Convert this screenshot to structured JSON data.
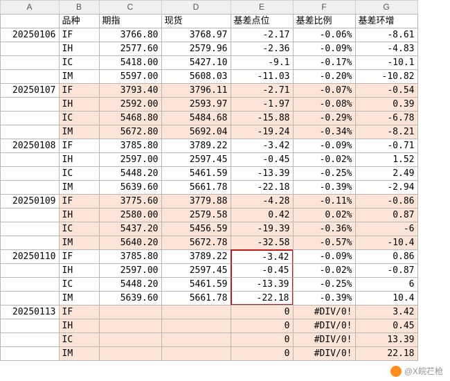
{
  "col_letters": [
    "A",
    "B",
    "C",
    "D",
    "E",
    "F",
    "G"
  ],
  "headers": {
    "B": "品种",
    "C": "期指",
    "D": "现货",
    "E": "基差点位",
    "F": "基差比例",
    "G": "基差环增"
  },
  "style": {
    "peach_color": "#fce4d6",
    "redbox_color": "#c01818",
    "border_color": "#b7b7b7",
    "header_bg": "#f0f0f0"
  },
  "rows": [
    {
      "date": "20250106",
      "sym": "IF",
      "c": "3766.80",
      "d": "3768.97",
      "e": "-2.17",
      "f": "-0.06%",
      "g": "-8.61",
      "bg": ""
    },
    {
      "date": "",
      "sym": "IH",
      "c": "2577.60",
      "d": "2579.96",
      "e": "-2.36",
      "f": "-0.09%",
      "g": "-4.83",
      "bg": ""
    },
    {
      "date": "",
      "sym": "IC",
      "c": "5418.00",
      "d": "5427.10",
      "e": "-9.1",
      "f": "-0.17%",
      "g": "-10.1",
      "bg": ""
    },
    {
      "date": "",
      "sym": "IM",
      "c": "5597.00",
      "d": "5608.03",
      "e": "-11.03",
      "f": "-0.20%",
      "g": "-10.82",
      "bg": ""
    },
    {
      "date": "20250107",
      "sym": "IF",
      "c": "3793.40",
      "d": "3796.11",
      "e": "-2.71",
      "f": "-0.07%",
      "g": "-0.54",
      "bg": "peach"
    },
    {
      "date": "",
      "sym": "IH",
      "c": "2592.00",
      "d": "2593.97",
      "e": "-1.97",
      "f": "-0.08%",
      "g": "0.39",
      "bg": "peach"
    },
    {
      "date": "",
      "sym": "IC",
      "c": "5468.80",
      "d": "5484.68",
      "e": "-15.88",
      "f": "-0.29%",
      "g": "-6.78",
      "bg": "peach"
    },
    {
      "date": "",
      "sym": "IM",
      "c": "5672.80",
      "d": "5692.04",
      "e": "-19.24",
      "f": "-0.34%",
      "g": "-8.21",
      "bg": "peach"
    },
    {
      "date": "20250108",
      "sym": "IF",
      "c": "3785.80",
      "d": "3789.22",
      "e": "-3.42",
      "f": "-0.09%",
      "g": "-0.71",
      "bg": ""
    },
    {
      "date": "",
      "sym": "IH",
      "c": "2597.00",
      "d": "2597.45",
      "e": "-0.45",
      "f": "-0.02%",
      "g": "1.52",
      "bg": ""
    },
    {
      "date": "",
      "sym": "IC",
      "c": "5448.20",
      "d": "5461.59",
      "e": "-13.39",
      "f": "-0.25%",
      "g": "2.49",
      "bg": ""
    },
    {
      "date": "",
      "sym": "IM",
      "c": "5639.60",
      "d": "5661.78",
      "e": "-22.18",
      "f": "-0.39%",
      "g": "-2.94",
      "bg": ""
    },
    {
      "date": "20250109",
      "sym": "IF",
      "c": "3775.60",
      "d": "3779.88",
      "e": "-4.28",
      "f": "-0.11%",
      "g": "-0.86",
      "bg": "peach"
    },
    {
      "date": "",
      "sym": "IH",
      "c": "2580.00",
      "d": "2579.58",
      "e": "0.42",
      "f": "0.02%",
      "g": "0.87",
      "bg": "peach"
    },
    {
      "date": "",
      "sym": "IC",
      "c": "5437.20",
      "d": "5456.59",
      "e": "-19.39",
      "f": "-0.36%",
      "g": "-6",
      "bg": "peach"
    },
    {
      "date": "",
      "sym": "IM",
      "c": "5640.20",
      "d": "5672.78",
      "e": "-32.58",
      "f": "-0.57%",
      "g": "-10.4",
      "bg": "peach"
    },
    {
      "date": "20250110",
      "sym": "IF",
      "c": "3785.80",
      "d": "3789.22",
      "e": "-3.42",
      "f": "-0.09%",
      "g": "0.86",
      "bg": "",
      "redbox": "top"
    },
    {
      "date": "",
      "sym": "IH",
      "c": "2597.00",
      "d": "2597.45",
      "e": "-0.45",
      "f": "-0.02%",
      "g": "-0.87",
      "bg": "",
      "redbox": "mid"
    },
    {
      "date": "",
      "sym": "IC",
      "c": "5448.20",
      "d": "5461.59",
      "e": "-13.39",
      "f": "-0.25%",
      "g": "6",
      "bg": "",
      "redbox": "mid"
    },
    {
      "date": "",
      "sym": "IM",
      "c": "5639.60",
      "d": "5661.78",
      "e": "-22.18",
      "f": "-0.39%",
      "g": "10.4",
      "bg": "",
      "redbox": "bottom"
    },
    {
      "date": "20250113",
      "sym": "IF",
      "c": "",
      "d": "",
      "e": "0",
      "f": "#DIV/0!",
      "g": "3.42",
      "bg": "peach"
    },
    {
      "date": "",
      "sym": "IH",
      "c": "",
      "d": "",
      "e": "0",
      "f": "#DIV/0!",
      "g": "0.45",
      "bg": "peach"
    },
    {
      "date": "",
      "sym": "IC",
      "c": "",
      "d": "",
      "e": "0",
      "f": "#DIV/0!",
      "g": "13.39",
      "bg": "peach"
    },
    {
      "date": "",
      "sym": "IM",
      "c": "",
      "d": "",
      "e": "0",
      "f": "#DIV/0!",
      "g": "22.18",
      "bg": "peach"
    }
  ],
  "watermark": "@X皖芢枪"
}
